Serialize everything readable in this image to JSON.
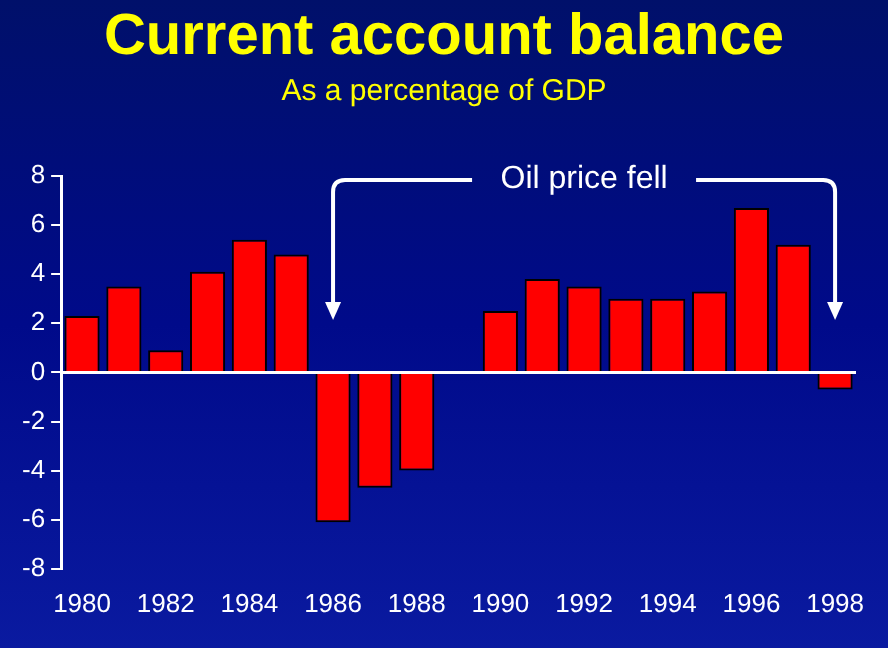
{
  "chart_data": {
    "type": "bar",
    "title": "Current account balance",
    "subtitle": "As a percentage of GDP",
    "categories": [
      "1980",
      null,
      "1982",
      null,
      "1984",
      null,
      "1986",
      null,
      "1988",
      null,
      "1990",
      null,
      "1992",
      null,
      "1994",
      null,
      "1996",
      null,
      "1998"
    ],
    "values": [
      2.3,
      3.5,
      0.9,
      4.1,
      5.4,
      4.8,
      -6.1,
      -4.7,
      -4.0,
      null,
      2.5,
      3.8,
      3.5,
      3.0,
      3.0,
      3.3,
      6.7,
      5.2,
      -0.7
    ],
    "color": "#ff0000",
    "ylim": [
      -8,
      8
    ],
    "yticks": [
      -8,
      -6,
      -4,
      -2,
      0,
      2,
      4,
      6,
      8
    ],
    "grid": false,
    "ref_lines": [
      {
        "axis": "y",
        "value": 0,
        "color": "#ffffff"
      }
    ],
    "annotations": [
      "Oil price fell"
    ]
  }
}
